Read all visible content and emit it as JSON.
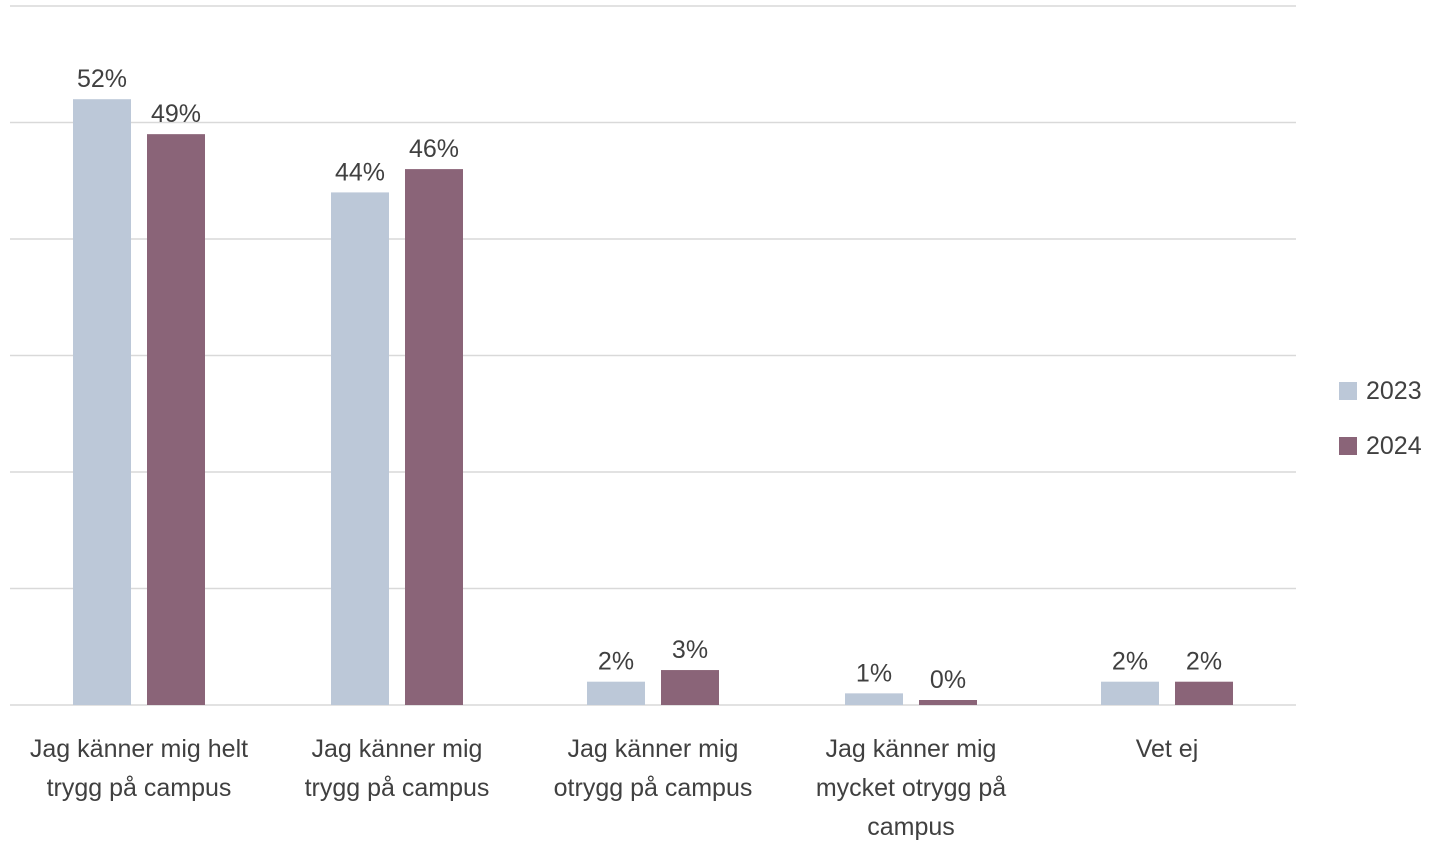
{
  "chart_data": {
    "type": "bar",
    "categories": [
      [
        "Jag känner mig helt",
        "trygg på campus"
      ],
      [
        "Jag känner mig",
        "trygg på campus"
      ],
      [
        "Jag känner mig",
        "otrygg på campus"
      ],
      [
        "Jag känner mig",
        "mycket otrygg på",
        "campus"
      ],
      [
        "Vet ej"
      ]
    ],
    "series": [
      {
        "name": "2023",
        "color": "#bcc8d8",
        "values": [
          52,
          44,
          2,
          1,
          2
        ],
        "labels": [
          "52%",
          "44%",
          "2%",
          "1%",
          "2%"
        ]
      },
      {
        "name": "2024",
        "color": "#8a6478",
        "values": [
          49,
          46,
          3,
          0,
          2
        ],
        "labels": [
          "49%",
          "46%",
          "3%",
          "0%",
          "2%"
        ]
      }
    ],
    "ylim": [
      0,
      60
    ],
    "grid": true,
    "legend": "right",
    "title": "",
    "xlabel": "",
    "ylabel": ""
  }
}
